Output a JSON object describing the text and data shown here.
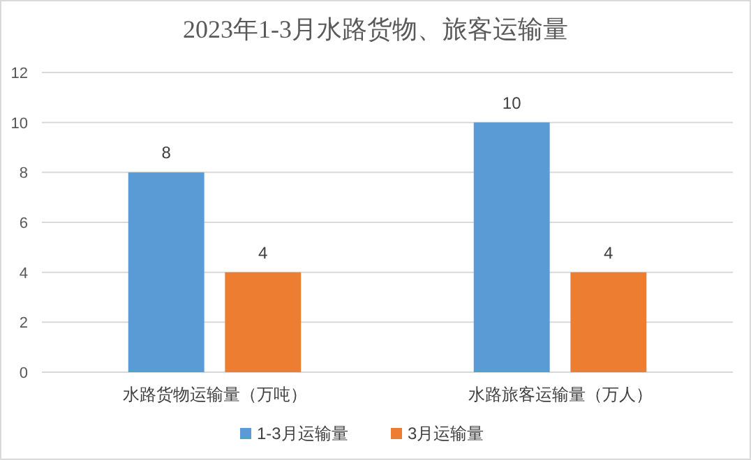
{
  "chart_data": {
    "type": "bar",
    "title": "2023年1-3月水路货物、旅客运输量",
    "categories": [
      "水路货物运输量（万吨）",
      "水路旅客运输量（万人）"
    ],
    "series": [
      {
        "name": "1-3月运输量",
        "color": "#5b9bd5",
        "values": [
          8,
          10
        ]
      },
      {
        "name": "3月运输量",
        "color": "#ed7d31",
        "values": [
          4,
          4
        ]
      }
    ],
    "ylim": [
      0,
      12
    ],
    "yticks": [
      0,
      2,
      4,
      6,
      8,
      10,
      12
    ],
    "grid": "y",
    "legend": "bottom",
    "data_labels": true
  }
}
